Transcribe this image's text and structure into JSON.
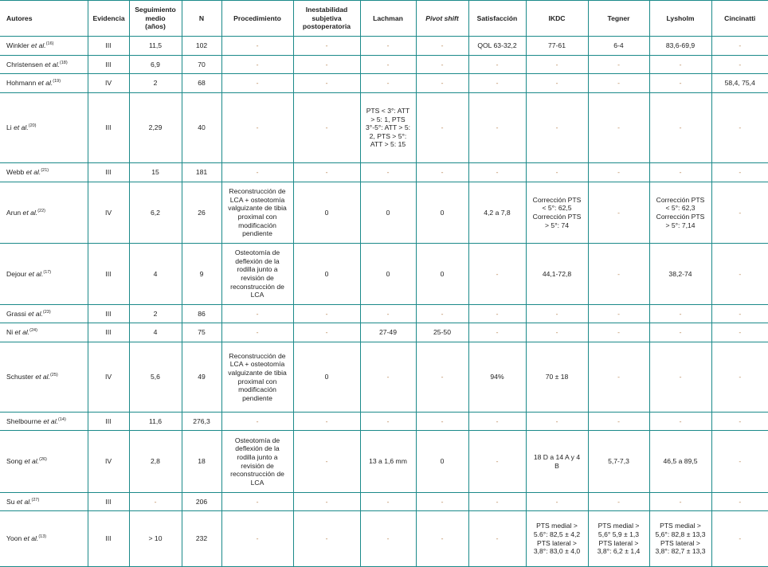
{
  "table": {
    "accent_color": "#1b8a8a",
    "columns": [
      {
        "label": "Autores"
      },
      {
        "label": "Evidencia"
      },
      {
        "label": "Seguimiento medio (años)"
      },
      {
        "label": "N"
      },
      {
        "label": "Procedimiento"
      },
      {
        "label": "Inestabilidad subjetiva postoperatoria"
      },
      {
        "label": "Lachman"
      },
      {
        "label": "Pivot shift",
        "italic": true
      },
      {
        "label": "Satisfacción"
      },
      {
        "label": "IKDC"
      },
      {
        "label": "Tegner"
      },
      {
        "label": "Lysholm"
      },
      {
        "label": "Cincinatti"
      }
    ],
    "rows": [
      {
        "author": "Winkler",
        "etal": "et al.",
        "ref": "(16)",
        "cells": [
          "III",
          "11,5",
          "102",
          "-",
          "-",
          "-",
          "-",
          "QOL 63-32,2",
          "77-61",
          "6-4",
          "83,6-69,9",
          "-"
        ]
      },
      {
        "author": "Christensen",
        "etal": "et al.",
        "ref": "(18)",
        "cells": [
          "III",
          "6,9",
          "70",
          "-",
          "-",
          "-",
          "-",
          "-",
          "-",
          "-",
          "-",
          "-"
        ]
      },
      {
        "author": "Hohmann",
        "etal": "et al.",
        "ref": "(19)",
        "cells": [
          "IV",
          "2",
          "68",
          "-",
          "-",
          "-",
          "-",
          "-",
          "-",
          "-",
          "-",
          "58,4, 75,4"
        ]
      },
      {
        "author": "Li",
        "etal": "et al.",
        "ref": "(20)",
        "cells": [
          "III",
          "2,29",
          "40",
          "-",
          "-",
          "PTS < 3°: ATT > 5: 1, PTS 3°-5°: ATT > 5: 2, PTS > 5°: ATT > 5: 15",
          "-",
          "-",
          "-",
          "-",
          "-",
          "-"
        ]
      },
      {
        "author": "Webb",
        "etal": "et al.",
        "ref": "(21)",
        "cells": [
          "III",
          "15",
          "181",
          "-",
          "-",
          "-",
          "-",
          "-",
          "-",
          "-",
          "-",
          "-"
        ]
      },
      {
        "author": "Arun",
        "etal": "et al.",
        "ref": "(22)",
        "cells": [
          "IV",
          "6,2",
          "26",
          "Reconstrucción de LCA + osteotomía valguizante de tibia proximal con modificación pendiente",
          "0",
          "0",
          "0",
          "4,2 a 7,8",
          "Corrección PTS < 5°: 62,5 Corrección PTS > 5°: 74",
          "-",
          "Corrección PTS < 5°: 62,3 Corrección PTS > 5°: 7,14",
          "-"
        ]
      },
      {
        "author": "Dejour",
        "etal": "et al.",
        "ref": "(17)",
        "cells": [
          "III",
          "4",
          "9",
          "Osteotomía de deflexión de la rodilla junto a revisión de reconstrucción de LCA",
          "0",
          "0",
          "0",
          "-",
          "44,1-72,8",
          "-",
          "38,2-74",
          "-"
        ]
      },
      {
        "author": "Grassi",
        "etal": "et al.",
        "ref": "(23)",
        "cells": [
          "III",
          "2",
          "86",
          "-",
          "-",
          "-",
          "-",
          "-",
          "-",
          "-",
          "-",
          "-"
        ]
      },
      {
        "author": "Ni",
        "etal": "et al.",
        "ref": "(24)",
        "cells": [
          "III",
          "4",
          "75",
          "-",
          "-",
          "27-49",
          "25-50",
          "-",
          "-",
          "-",
          "-",
          "-"
        ]
      },
      {
        "author": "Schuster",
        "etal": "et al.",
        "ref": "(25)",
        "cells": [
          "IV",
          "5,6",
          "49",
          "Reconstrucción de LCA + osteotomía valguizante de tibia proximal con modificación pendiente",
          "0",
          "-",
          "-",
          "94%",
          "70 ± 18",
          "-",
          "-",
          "-"
        ]
      },
      {
        "author": "Shelbourne",
        "etal": "et al.",
        "ref": "(14)",
        "cells": [
          "III",
          "11,6",
          "276,3",
          "-",
          "-",
          "-",
          "-",
          "-",
          "-",
          "-",
          "-",
          "-"
        ]
      },
      {
        "author": "Song",
        "etal": "et al.",
        "ref": "(26)",
        "cells": [
          "IV",
          "2,8",
          "18",
          "Osteotomía de deflexión de la rodilla junto a revisión de reconstrucción de LCA",
          "-",
          "13 a 1,6 mm",
          "0",
          "-",
          "18 D a 14 A y 4 B",
          "5,7-7,3",
          "46,5 a 89,5",
          "-"
        ]
      },
      {
        "author": "Su",
        "etal": "et al.",
        "ref": "(27)",
        "cells": [
          "III",
          "-",
          "206",
          "-",
          "-",
          "-",
          "-",
          "-",
          "-",
          "-",
          "-",
          "-"
        ]
      },
      {
        "author": "Yoon",
        "etal": "et al.",
        "ref": "(13)",
        "cells": [
          "III",
          "> 10",
          "232",
          "-",
          "-",
          "-",
          "-",
          "-",
          "PTS medial > 5.6°: 82,5 ± 4,2 PTS lateral > 3,8°: 83,0 ± 4,0",
          "PTS medial > 5,6° 5,9 ± 1,3 PTS lateral > 3,8°: 6,2 ± 1,4",
          "PTS medial > 5,6°: 82,8 ± 13,3 PTS lateral > 3,8°: 82,7 ± 13,3",
          "-"
        ]
      }
    ]
  }
}
